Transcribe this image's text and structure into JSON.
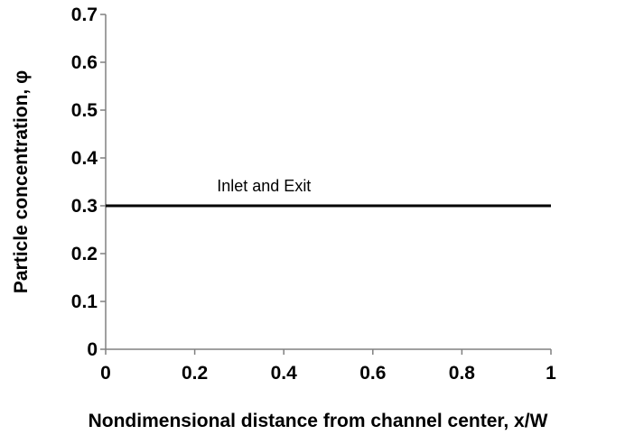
{
  "chart_data": {
    "type": "line",
    "title": "",
    "xlabel": "Nondimensional distance from channel center, x/W",
    "ylabel": "Particle concentration, φ",
    "xlim": [
      0,
      1
    ],
    "ylim": [
      0,
      0.7
    ],
    "x_ticks": [
      "0",
      "0.2",
      "0.4",
      "0.6",
      "0.8",
      "1"
    ],
    "y_ticks": [
      "0",
      "0.1",
      "0.2",
      "0.3",
      "0.4",
      "0.5",
      "0.6",
      "0.7"
    ],
    "grid": false,
    "series": [
      {
        "x": [
          0,
          1
        ],
        "y": [
          0.3,
          0.3
        ],
        "color": "#000000"
      }
    ],
    "annotations": [
      {
        "text": "Inlet and Exit",
        "x": 0.25,
        "y": 0.33
      }
    ]
  }
}
